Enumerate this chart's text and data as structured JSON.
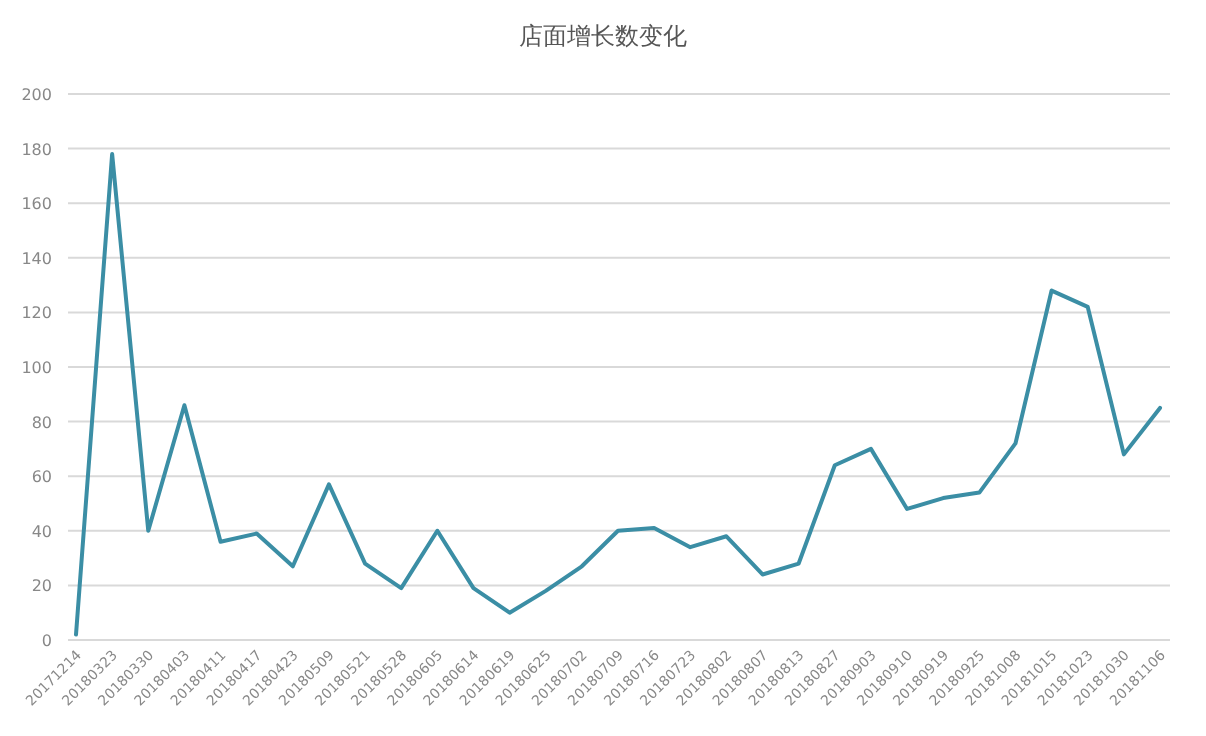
{
  "chart_data": {
    "type": "line",
    "title": "店面增长数变化",
    "categories": [
      "20171214",
      "20180323",
      "20180330",
      "20180403",
      "20180411",
      "20180417",
      "20180423",
      "20180509",
      "20180521",
      "20180528",
      "20180605",
      "20180614",
      "20180619",
      "20180625",
      "20180702",
      "20180709",
      "20180716",
      "20180723",
      "20180802",
      "20180807",
      "20180813",
      "20180827",
      "20180903",
      "20180910",
      "20180919",
      "20180925",
      "20181008",
      "20181015",
      "20181023",
      "20181030",
      "20181106"
    ],
    "series": [
      {
        "color": "#3b8ea5",
        "values": [
          2,
          178,
          40,
          86,
          36,
          39,
          27,
          57,
          28,
          19,
          40,
          19,
          10,
          18,
          27,
          40,
          41,
          34,
          38,
          24,
          28,
          64,
          70,
          48,
          52,
          54,
          72,
          128,
          122,
          68,
          85
        ]
      }
    ],
    "ylim": [
      0,
      200
    ],
    "yticks": [
      0,
      20,
      40,
      60,
      80,
      100,
      120,
      140,
      160,
      180,
      200
    ],
    "grid": "y",
    "marker": "none",
    "line_style": "solid"
  }
}
